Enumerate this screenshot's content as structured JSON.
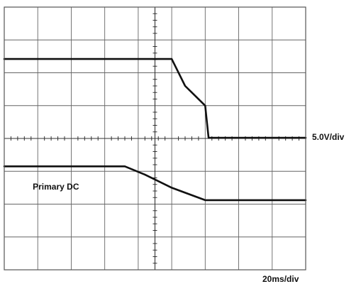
{
  "chart_data": {
    "type": "line",
    "title": "",
    "xlabel": "",
    "ylabel": "",
    "x_unit": "div",
    "xlim": [
      0,
      9
    ],
    "ylim": [
      -4,
      4
    ],
    "grid": true,
    "divisions": {
      "horizontal": 9,
      "vertical": 8
    },
    "horizontal_scale_label": "20ms/div",
    "series": [
      {
        "scale_label": "5.0V/div",
        "x": [
          0,
          2.5,
          5.0,
          5.4,
          5.7,
          6.0,
          6.1,
          6.2,
          7.0,
          8.0,
          9.0
        ],
        "y": [
          2.42,
          2.42,
          2.42,
          1.6,
          1.3,
          1.0,
          0.02,
          0.02,
          0.02,
          0.02,
          0.02
        ]
      },
      {
        "name": "Primary DC",
        "x": [
          0,
          1.0,
          2.0,
          3.6,
          4.2,
          5.0,
          6.0,
          7.0,
          8.0,
          9.0
        ],
        "y": [
          -0.85,
          -0.85,
          -0.85,
          -0.85,
          -1.1,
          -1.5,
          -1.88,
          -1.88,
          -1.88,
          -1.88
        ]
      }
    ]
  }
}
